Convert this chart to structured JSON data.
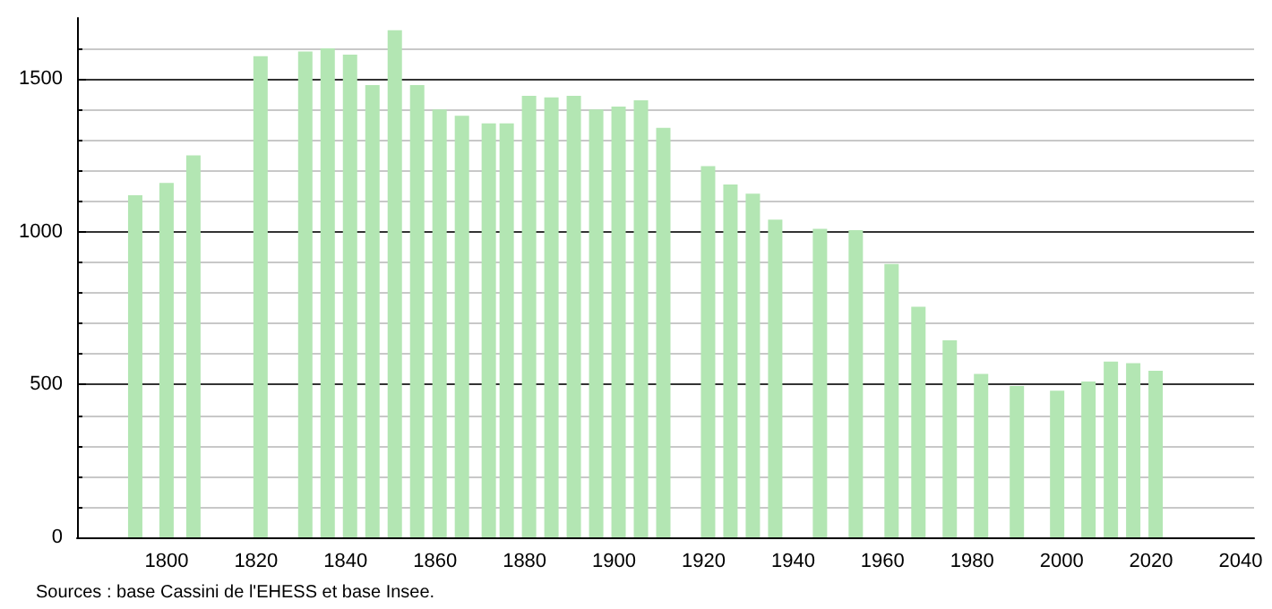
{
  "chart_data": {
    "type": "bar",
    "color": "#b3e6b3",
    "x": [
      1793,
      1800,
      1806,
      1821,
      1831,
      1836,
      1841,
      1846,
      1851,
      1856,
      1861,
      1866,
      1872,
      1876,
      1881,
      1886,
      1891,
      1896,
      1901,
      1906,
      1911,
      1921,
      1926,
      1931,
      1936,
      1946,
      1954,
      1962,
      1968,
      1975,
      1982,
      1990,
      1999,
      2006,
      2011,
      2016,
      2021
    ],
    "values": [
      1120,
      1160,
      1250,
      1575,
      1590,
      1600,
      1580,
      1480,
      1660,
      1480,
      1400,
      1380,
      1355,
      1355,
      1445,
      1440,
      1445,
      1400,
      1410,
      1430,
      1340,
      1215,
      1155,
      1125,
      1040,
      1010,
      1005,
      895,
      755,
      645,
      535,
      495,
      480,
      510,
      575,
      570,
      545
    ],
    "xlim": [
      1780,
      2043
    ],
    "xticks": [
      1800,
      1820,
      1840,
      1860,
      1880,
      1900,
      1920,
      1940,
      1960,
      1980,
      2000,
      2020,
      2040
    ],
    "ylim": [
      0,
      1700
    ],
    "yticks": [
      0,
      500,
      1000,
      1500
    ],
    "grid": "y",
    "annotations": [
      "Sources : base Cassini de l'EHESS et base Insee."
    ]
  }
}
